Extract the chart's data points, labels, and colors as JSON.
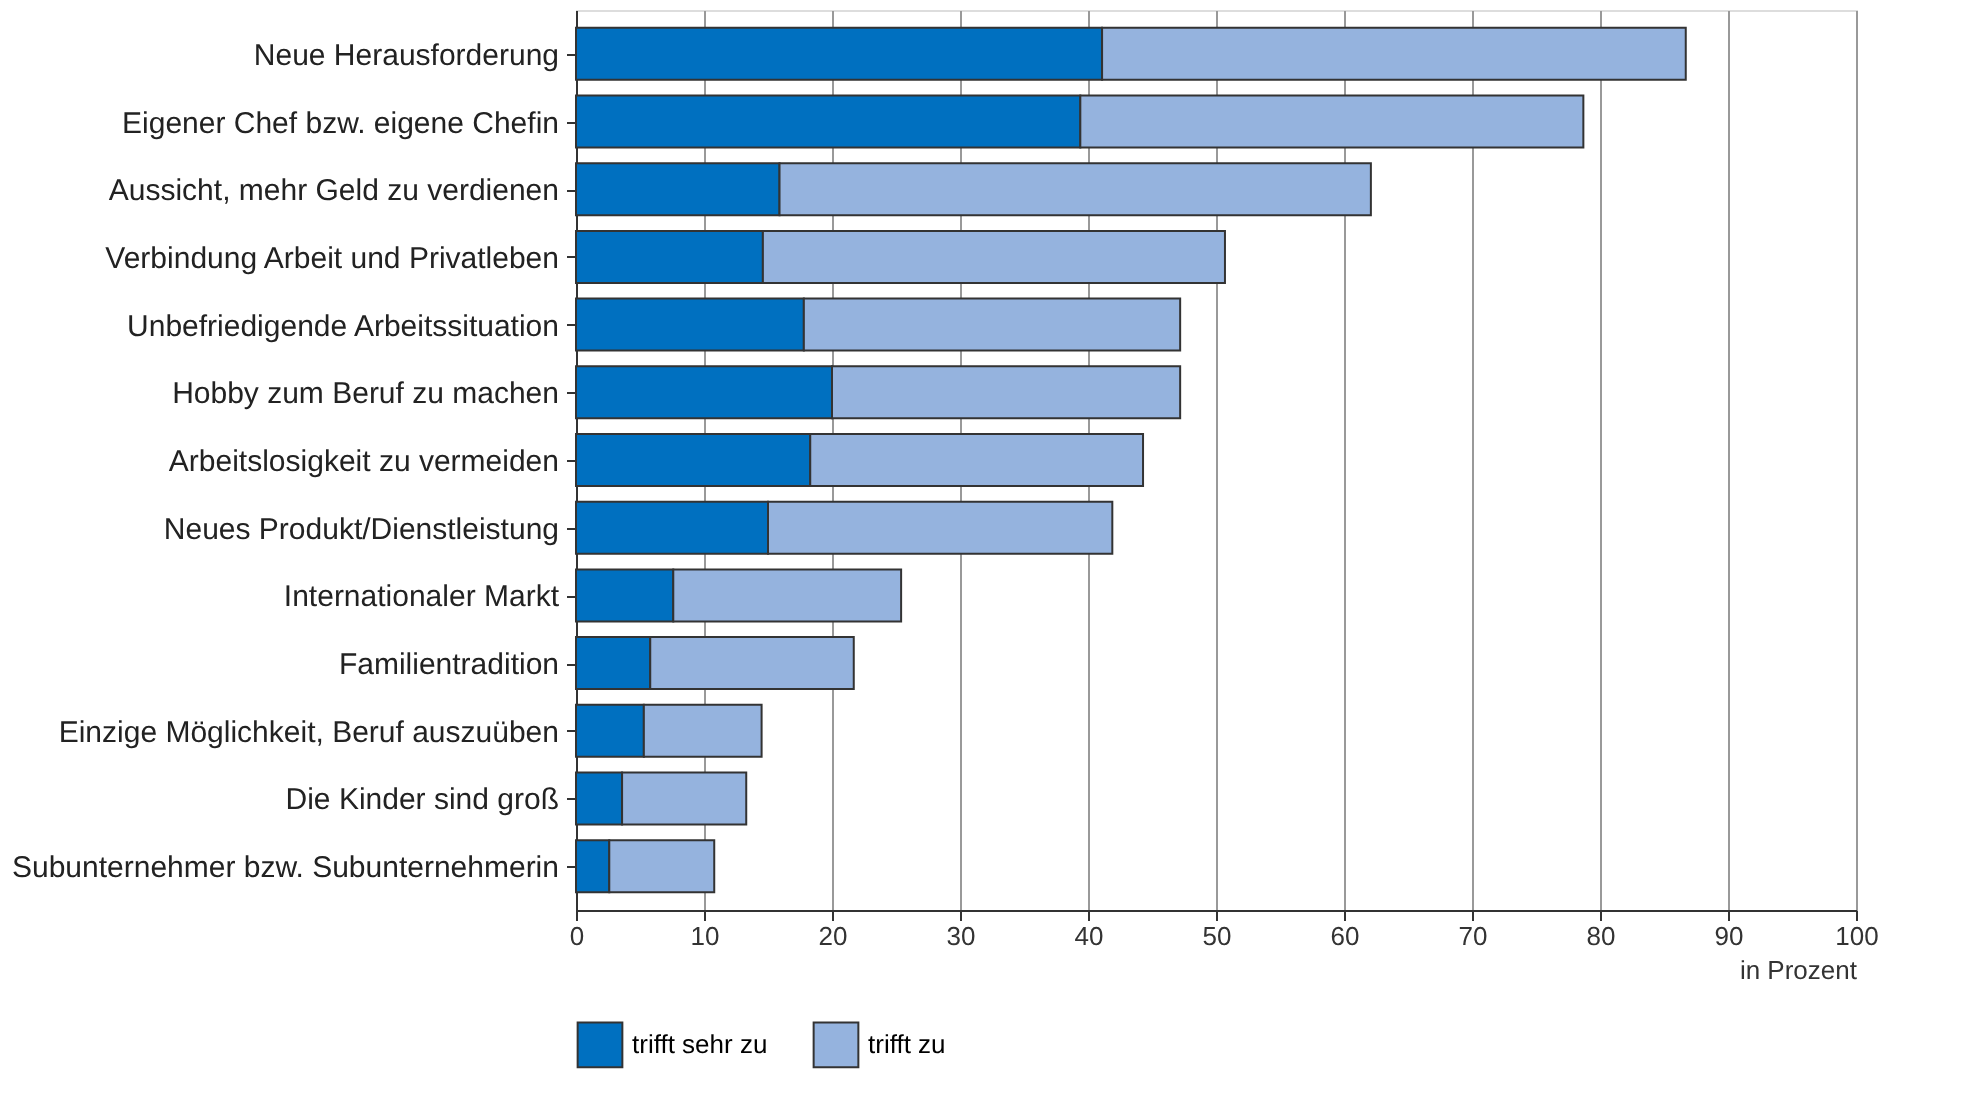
{
  "chart_data": {
    "type": "bar",
    "orientation": "horizontal",
    "stacked": true,
    "categories": [
      "Neue Herausforderung",
      "Eigener Chef bzw. eigene Chefin",
      "Aussicht, mehr Geld zu verdienen",
      "Verbindung Arbeit und Privatleben",
      "Unbefriedigende Arbeitssituation",
      "Hobby zum Beruf zu machen",
      "Arbeitslosigkeit zu vermeiden",
      "Neues Produkt/Dienstleistung",
      "Internationaler Markt",
      "Familientradition",
      "Einzige Möglichkeit, Beruf auszuüben",
      "Die Kinder sind groß",
      "Subunternehmer bzw. Subunternehmerin"
    ],
    "series": [
      {
        "name": "trifft sehr zu",
        "color": "#0070c0",
        "values": [
          41.1,
          39.4,
          15.9,
          14.6,
          17.8,
          20.0,
          18.3,
          15.0,
          7.6,
          5.8,
          5.3,
          3.6,
          2.6
        ]
      },
      {
        "name": "trifft zu",
        "color": "#95b3de",
        "values": [
          45.6,
          39.3,
          46.2,
          36.1,
          29.4,
          27.2,
          26.0,
          26.9,
          17.8,
          15.9,
          9.2,
          9.7,
          8.2
        ]
      }
    ],
    "xlabel": "in Prozent",
    "xlim": [
      0,
      100
    ],
    "xticks": [
      0,
      10,
      20,
      30,
      40,
      50,
      60,
      70,
      80,
      90,
      100
    ],
    "grid": "x",
    "legend": "bottom"
  }
}
